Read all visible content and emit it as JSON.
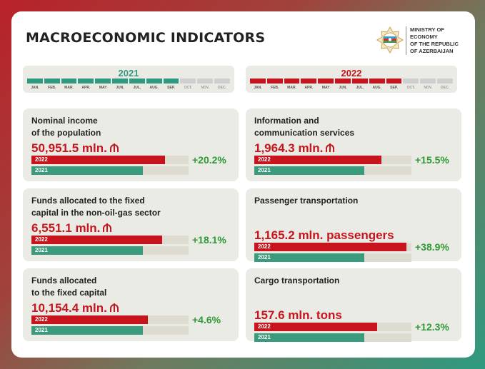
{
  "header": {
    "title": "MACROECONOMIC INDICATORS",
    "ministry_lines": [
      "MINISTRY OF ECONOMY",
      "OF THE REPUBLIC",
      "OF AZERBAIJAN"
    ]
  },
  "timelines": [
    {
      "year": "2021",
      "color": "#2f9a7f",
      "months": [
        "JAN.",
        "FEB.",
        "MAR.",
        "APR.",
        "MAY",
        "JUN.",
        "JUL.",
        "AUG.",
        "SEP.",
        "OCT.",
        "NOV.",
        "DEC."
      ],
      "active_months": 9
    },
    {
      "year": "2022",
      "color": "#c8141c",
      "months": [
        "JAN.",
        "FEB.",
        "MAR.",
        "APR.",
        "MAY",
        "JUN.",
        "JUL.",
        "AUG.",
        "SEP.",
        "OCT.",
        "NOV.",
        "DEC."
      ],
      "active_months": 9
    }
  ],
  "bar_labels": {
    "current": "2022",
    "previous": "2021"
  },
  "indicators": [
    {
      "label_lines": [
        "Nominal income",
        "of the population"
      ],
      "value": "50,951.5 mln.",
      "currency_icon": true,
      "change": "+20.2%",
      "fill_2022": 0.85,
      "fill_2021": 0.71
    },
    {
      "label_lines": [
        "Information and",
        "communication services"
      ],
      "value": "1,964.3 mln.",
      "currency_icon": true,
      "change": "+15.5%",
      "fill_2022": 0.81,
      "fill_2021": 0.7
    },
    {
      "label_lines": [
        "Funds allocated to the fixed",
        "capital in the non-oil-gas sector"
      ],
      "value": "6,551.1 mln.",
      "currency_icon": true,
      "change": "+18.1%",
      "fill_2022": 0.83,
      "fill_2021": 0.71
    },
    {
      "label_lines": [
        "Passenger transportation"
      ],
      "value": "1,165.2 mln. passengers",
      "currency_icon": false,
      "change": "+38.9%",
      "fill_2022": 0.97,
      "fill_2021": 0.7
    },
    {
      "label_lines": [
        "Funds allocated",
        "to the fixed capital"
      ],
      "value": "10,154.4 mln.",
      "currency_icon": true,
      "change": "+4.6%",
      "fill_2022": 0.74,
      "fill_2021": 0.71
    },
    {
      "label_lines": [
        "Cargo transportation"
      ],
      "value": "157.6 mln. tons",
      "currency_icon": false,
      "change": "+12.3%",
      "fill_2022": 0.78,
      "fill_2021": 0.7
    }
  ],
  "colors": {
    "accent_red": "#c8141c",
    "accent_green": "#3a9b7d",
    "change_green": "#2f9a35",
    "inactive_month": "#cfcfcf"
  }
}
